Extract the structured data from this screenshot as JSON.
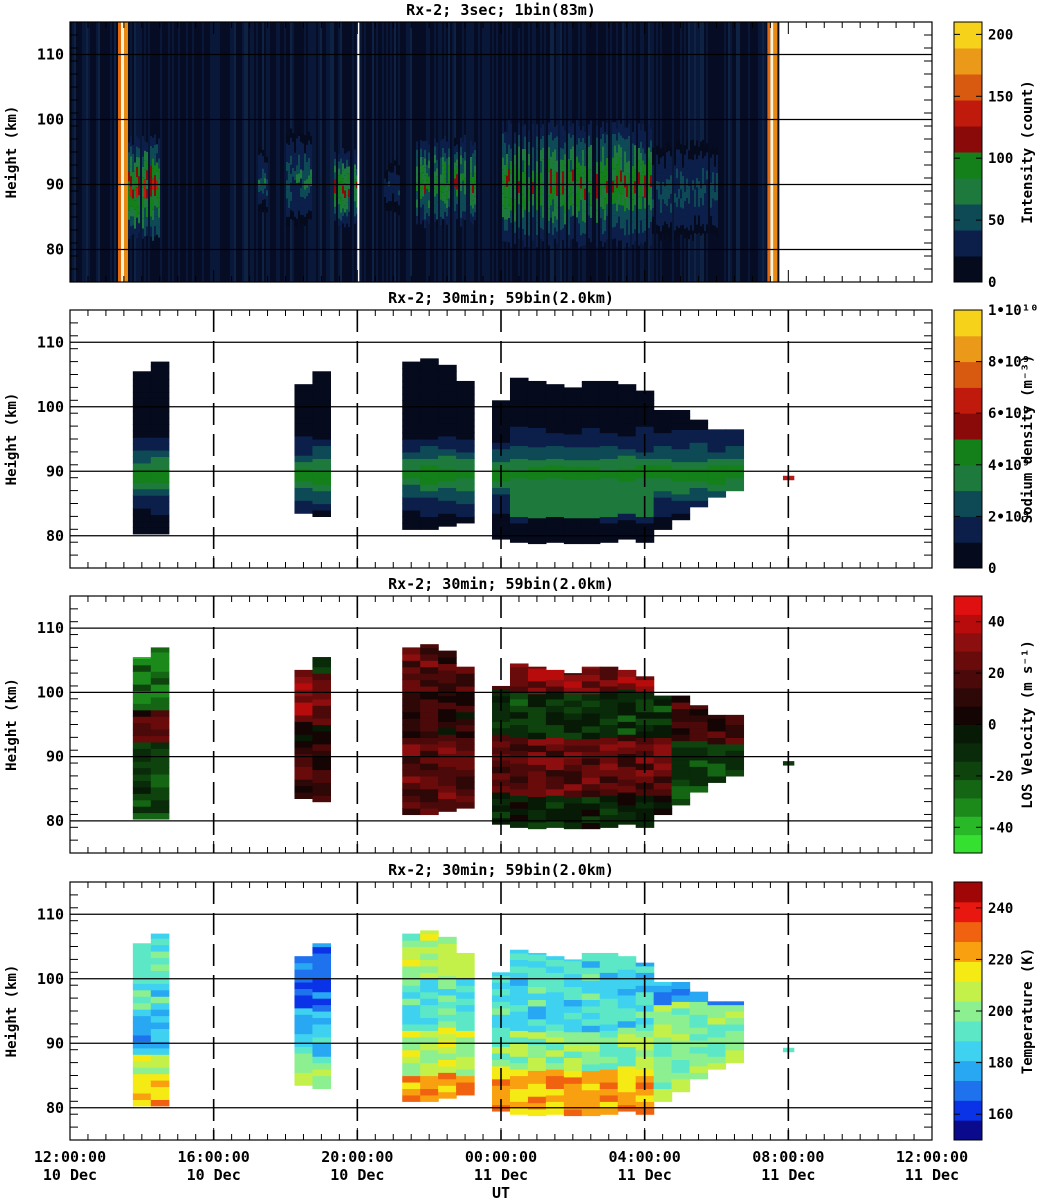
{
  "x_axis": {
    "label": "UT",
    "ticks": [
      {
        "time": "12:00:00",
        "date": "10 Dec"
      },
      {
        "time": "16:00:00",
        "date": "10 Dec"
      },
      {
        "time": "20:00:00",
        "date": "10 Dec"
      },
      {
        "time": "00:00:00",
        "date": "11 Dec"
      },
      {
        "time": "04:00:00",
        "date": "11 Dec"
      },
      {
        "time": "08:00:00",
        "date": "11 Dec"
      },
      {
        "time": "12:00:00",
        "date": "11 Dec"
      }
    ]
  },
  "chart_data": [
    {
      "type": "heatmap",
      "title": "Rx-2;  3sec; 1bin(83m)",
      "ylabel": "Height (km)",
      "ylim": [
        75,
        115
      ],
      "yticks": [
        80,
        90,
        100,
        110
      ],
      "xlim_hours": [
        12,
        36
      ],
      "colorbar": {
        "label": "Intensity (count)",
        "range": [
          0,
          210
        ],
        "tick_values": [
          0,
          50,
          100,
          150,
          200
        ],
        "tick_labels": [
          "0",
          "50",
          "100",
          "150",
          "200"
        ]
      },
      "observation_span_hours": [
        13.4,
        31.75
      ],
      "twilight_bands_hours": [
        13.42,
        31.5
      ],
      "active_layer_blocks": [
        {
          "start": 13.4,
          "end": 14.5,
          "bottom": 82,
          "top": 97,
          "peak": 125
        },
        {
          "start": 17.2,
          "end": 17.5,
          "bottom": 86,
          "top": 95,
          "peak": 60
        },
        {
          "start": 18.0,
          "end": 18.7,
          "bottom": 84,
          "top": 98,
          "peak": 60
        },
        {
          "start": 19.3,
          "end": 20.0,
          "bottom": 84,
          "top": 95,
          "peak": 110
        },
        {
          "start": 20.7,
          "end": 21.2,
          "bottom": 86,
          "top": 93,
          "peak": 40
        },
        {
          "start": 21.6,
          "end": 23.3,
          "bottom": 84,
          "top": 97,
          "peak": 100
        },
        {
          "start": 24.0,
          "end": 28.2,
          "bottom": 81,
          "top": 99,
          "peak": 110
        },
        {
          "start": 28.2,
          "end": 30.0,
          "bottom": 82,
          "top": 96,
          "peak": 55
        }
      ]
    },
    {
      "type": "heatmap",
      "title": "Rx-2; 30min; 59bin(2.0km)",
      "ylabel": "Height (km)",
      "ylim": [
        75,
        115
      ],
      "yticks": [
        80,
        90,
        100,
        110
      ],
      "xlim_hours": [
        12,
        36
      ],
      "colorbar": {
        "label": "Sodium density (m⁻³)",
        "range": [
          0,
          10000000000.0
        ],
        "tick_values": [
          0,
          2000000000.0,
          4000000000.0,
          6000000000.0,
          8000000000.0,
          10000000000.0
        ],
        "tick_labels": [
          "0",
          "2•10⁹",
          "4•10⁹",
          "6•10⁹",
          "8•10⁹",
          "1•10¹⁰"
        ]
      },
      "bin_hours": 0.5,
      "columns": [
        {
          "t": 14.0,
          "bottom": 80.3,
          "top": 105.5
        },
        {
          "t": 14.5,
          "bottom": 80.3,
          "top": 107.0
        },
        {
          "t": 18.5,
          "bottom": 83.5,
          "top": 103.5
        },
        {
          "t": 19.0,
          "bottom": 83.0,
          "top": 105.5
        },
        {
          "t": 21.5,
          "bottom": 81.0,
          "top": 107.0
        },
        {
          "t": 22.0,
          "bottom": 81.0,
          "top": 107.5
        },
        {
          "t": 22.5,
          "bottom": 81.5,
          "top": 106.5
        },
        {
          "t": 23.0,
          "bottom": 82.0,
          "top": 104.0
        },
        {
          "t": 24.0,
          "bottom": 79.5,
          "top": 101.0
        },
        {
          "t": 24.5,
          "bottom": 79.0,
          "top": 104.5
        },
        {
          "t": 25.0,
          "bottom": 78.8,
          "top": 104.0
        },
        {
          "t": 25.5,
          "bottom": 79.0,
          "top": 103.5
        },
        {
          "t": 26.0,
          "bottom": 78.8,
          "top": 103.0
        },
        {
          "t": 26.5,
          "bottom": 78.8,
          "top": 104.0
        },
        {
          "t": 27.0,
          "bottom": 79.0,
          "top": 104.0
        },
        {
          "t": 27.5,
          "bottom": 79.5,
          "top": 103.5
        },
        {
          "t": 28.0,
          "bottom": 79.0,
          "top": 102.5
        },
        {
          "t": 28.5,
          "bottom": 81.0,
          "top": 99.5
        },
        {
          "t": 29.0,
          "bottom": 82.5,
          "top": 99.5
        },
        {
          "t": 29.5,
          "bottom": 84.5,
          "top": 98.0
        },
        {
          "t": 30.0,
          "bottom": 86.0,
          "top": 96.5
        },
        {
          "t": 30.5,
          "bottom": 87.0,
          "top": 96.5
        },
        {
          "t": 32.0,
          "bottom": 88.7,
          "top": 89.3
        }
      ]
    },
    {
      "type": "heatmap",
      "title": "Rx-2; 30min; 59bin(2.0km)",
      "ylabel": "Height (km)",
      "ylim": [
        75,
        115
      ],
      "yticks": [
        80,
        90,
        100,
        110
      ],
      "xlim_hours": [
        12,
        36
      ],
      "colorbar": {
        "label": "LOS Velocity (m s⁻¹)",
        "range": [
          -50,
          50
        ],
        "tick_values": [
          -40,
          -20,
          0,
          20,
          40
        ],
        "tick_labels": [
          "-40",
          "-20",
          "0",
          "20",
          "40"
        ]
      },
      "bin_hours": 0.5
    },
    {
      "type": "heatmap",
      "title": "Rx-2; 30min; 59bin(2.0km)",
      "ylabel": "Height (km)",
      "ylim": [
        75,
        115
      ],
      "yticks": [
        80,
        90,
        100,
        110
      ],
      "xlim_hours": [
        12,
        36
      ],
      "colorbar": {
        "label": "Temperature (K)",
        "range": [
          150,
          250
        ],
        "tick_values": [
          160,
          180,
          200,
          220,
          240
        ],
        "tick_labels": [
          "160",
          "180",
          "200",
          "220",
          "240"
        ]
      },
      "bin_hours": 0.5
    }
  ]
}
